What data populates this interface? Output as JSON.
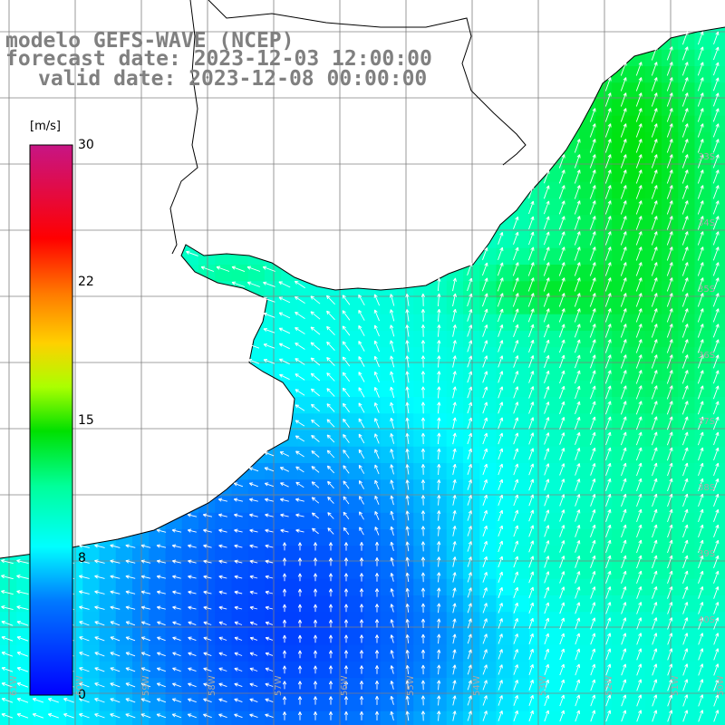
{
  "title": {
    "line1": "modelo GEFS-WAVE (NCEP)",
    "line2": "forecast date: 2023-12-03 12:00:00",
    "line3": "valid date: 2023-12-08 00:00:00"
  },
  "colorbar": {
    "unit": "[m/s]",
    "ticks": [
      "30",
      "22",
      "15",
      "8",
      "0"
    ],
    "tick_values": [
      30,
      22,
      15,
      8,
      0
    ],
    "range": [
      0,
      30
    ],
    "colors": [
      "#0000ff",
      "#00b4ff",
      "#00ffff",
      "#00ff00",
      "#ffff00",
      "#ff8c00",
      "#ff0000",
      "#c71585"
    ]
  },
  "map": {
    "land_color": "#ffffff",
    "coast_color": "#000000",
    "grid_color": "#808080",
    "lat_labels": [
      "33S",
      "34S",
      "35S",
      "36S",
      "37S",
      "38S",
      "39S",
      "40S"
    ],
    "lon_labels": [
      "61W",
      "60W",
      "59W",
      "58W",
      "57W",
      "56W",
      "55W",
      "54W",
      "53W",
      "52W",
      "51W",
      "50W"
    ]
  }
}
